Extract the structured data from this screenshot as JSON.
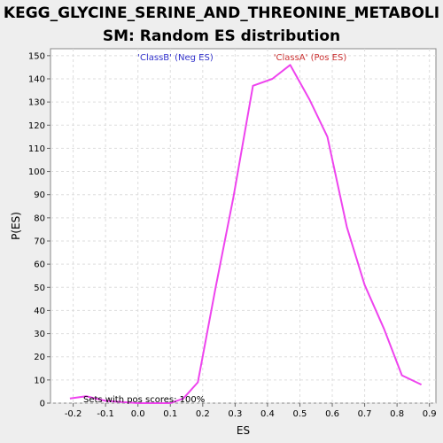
{
  "chart_data": {
    "type": "line",
    "title_line1": "KEGG_GLYCINE_SERINE_AND_THREONINE_METABOLI",
    "title_line2": "SM: Random ES distribution",
    "xlabel": "ES",
    "ylabel": "P(ES)",
    "xlim": [
      -0.27,
      0.92
    ],
    "ylim": [
      0,
      153
    ],
    "xticks": [
      -0.2,
      -0.1,
      0.0,
      0.1,
      0.2,
      0.3,
      0.4,
      0.5,
      0.6,
      0.7,
      0.8,
      0.9
    ],
    "xtick_labels": [
      "-0.2",
      "-0.1",
      "0.0",
      "0.1",
      "0.2",
      "0.3",
      "0.4",
      "0.5",
      "0.6",
      "0.7",
      "0.8",
      "0.9"
    ],
    "yticks": [
      0,
      10,
      20,
      30,
      40,
      50,
      60,
      70,
      80,
      90,
      100,
      110,
      120,
      130,
      140,
      150
    ],
    "grid": true,
    "legend": {
      "neg_label": "'ClassB' (Neg ES)",
      "pos_label": "'ClassA' (Pos ES)"
    },
    "annotation": "Sets with pos scores: 100%",
    "series": [
      {
        "color": "#ee44ee",
        "x": [
          -0.21,
          -0.16,
          -0.1,
          0.0,
          0.1,
          0.14,
          0.185,
          0.24,
          0.295,
          0.355,
          0.415,
          0.47,
          0.53,
          0.585,
          0.645,
          0.7,
          0.76,
          0.815,
          0.875
        ],
        "y": [
          2,
          3,
          1,
          0,
          0,
          2,
          9,
          50,
          89,
          137,
          140,
          146,
          131,
          115,
          76,
          51,
          32,
          12,
          8
        ]
      }
    ]
  }
}
